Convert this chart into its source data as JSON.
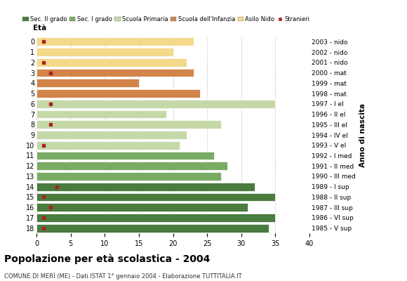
{
  "ages": [
    18,
    17,
    16,
    15,
    14,
    13,
    12,
    11,
    10,
    9,
    8,
    7,
    6,
    5,
    4,
    3,
    2,
    1,
    0
  ],
  "years": [
    "1985 - V sup",
    "1986 - VI sup",
    "1987 - III sup",
    "1988 - II sup",
    "1989 - I sup",
    "1990 - III med",
    "1991 - II med",
    "1992 - I med",
    "1993 - V el",
    "1994 - IV el",
    "1995 - III el",
    "1996 - II el",
    "1997 - I el",
    "1998 - mat",
    "1999 - mat",
    "2000 - mat",
    "2001 - nido",
    "2002 - nido",
    "2003 - nido"
  ],
  "values": [
    34,
    35,
    31,
    35,
    32,
    27,
    28,
    26,
    21,
    22,
    27,
    19,
    35,
    24,
    15,
    23,
    22,
    20,
    23
  ],
  "stranieri": [
    1,
    1,
    2,
    1,
    3,
    0,
    0,
    0,
    1,
    0,
    2,
    0,
    2,
    0,
    0,
    2,
    1,
    0,
    1
  ],
  "bar_colors": [
    "#4a7c3f",
    "#4a7c3f",
    "#4a7c3f",
    "#4a7c3f",
    "#4a7c3f",
    "#7aab64",
    "#7aab64",
    "#7aab64",
    "#c5d9a8",
    "#c5d9a8",
    "#c5d9a8",
    "#c5d9a8",
    "#c5d9a8",
    "#d2844a",
    "#d2844a",
    "#d2844a",
    "#f5d98a",
    "#f5d98a",
    "#f5d98a"
  ],
  "stranieri_color": "#aa2222",
  "legend_labels": [
    "Sec. II grado",
    "Sec. I grado",
    "Scuola Primaria",
    "Scuola dell'Infanzia",
    "Asilo Nido",
    "Stranieri"
  ],
  "legend_colors": [
    "#4a7c3f",
    "#7aab64",
    "#c5d9a8",
    "#d2844a",
    "#f5d98a",
    "#aa2222"
  ],
  "title": "Popolazione per età scolastica - 2004",
  "subtitle": "COMUNE DI MERÌ (ME) - Dati ISTAT 1° gennaio 2004 - Elaborazione TUTTITALIA.IT",
  "xlabel_eta": "Età",
  "xlabel_anno": "Anno di nascita",
  "xlim": [
    0,
    40
  ],
  "grid_ticks": [
    0,
    5,
    10,
    15,
    20,
    25,
    30,
    35,
    40
  ],
  "background_color": "#ffffff",
  "bar_edge_color": "#ffffff"
}
